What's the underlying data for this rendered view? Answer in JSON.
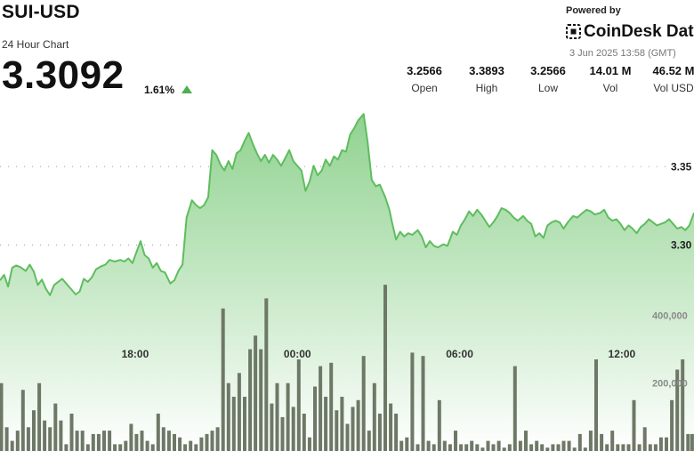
{
  "header": {
    "pair": "SUI-USD",
    "subtitle": "24 Hour Chart",
    "price": "3.3092",
    "change": "1.61%",
    "change_direction_icon": "triangle-up-icon"
  },
  "branding": {
    "powered_by": "Powered by",
    "brand": "CoinDesk Data",
    "timestamp": "3 Jun 2025 13:58 (GMT)"
  },
  "stats": [
    {
      "value": "3.2566",
      "label": "Open"
    },
    {
      "value": "3.3893",
      "label": "High"
    },
    {
      "value": "3.2566",
      "label": "Low"
    },
    {
      "value": "14.01 M",
      "label": "Vol"
    },
    {
      "value": "46.52 M",
      "label": "Vol USD"
    }
  ],
  "colors": {
    "line": "#5ebd5e",
    "fill_top": "#8bd08b",
    "fill_bottom": "#ffffff",
    "volume_bar": "#6e7866",
    "up_icon": "#4caf50"
  },
  "chart_data": {
    "type": "area",
    "grid": "dotted horizontal",
    "x_tick_labels": [
      "18:00",
      "00:00",
      "06:00",
      "12:00"
    ],
    "x_ticks_hours": [
      4.0,
      10.0,
      16.0,
      22.0
    ],
    "x_range_hours": [
      -1.0,
      24.67
    ],
    "price_axis": {
      "tick_labels": [
        "3.35",
        "3.30"
      ],
      "tick_values": [
        3.35,
        3.3
      ],
      "range": [
        3.2566,
        3.3893
      ]
    },
    "volume_axis": {
      "tick_labels": [
        "400,000",
        "200,000"
      ],
      "tick_values": [
        400000,
        200000
      ],
      "range": [
        0,
        700000
      ]
    },
    "price_series": [
      [
        -1.0,
        3.2775
      ],
      [
        -0.85,
        3.281
      ],
      [
        -0.7,
        3.2735
      ],
      [
        -0.55,
        3.2855
      ],
      [
        -0.4,
        3.287
      ],
      [
        -0.25,
        3.286
      ],
      [
        -0.05,
        3.2835
      ],
      [
        0.1,
        3.2875
      ],
      [
        0.25,
        3.283
      ],
      [
        0.4,
        3.2745
      ],
      [
        0.55,
        3.278
      ],
      [
        0.7,
        3.272
      ],
      [
        0.85,
        3.268
      ],
      [
        1.0,
        3.2745
      ],
      [
        1.15,
        3.2765
      ],
      [
        1.3,
        3.2785
      ],
      [
        1.45,
        3.2755
      ],
      [
        1.6,
        3.2725
      ],
      [
        1.8,
        3.2685
      ],
      [
        1.95,
        3.2705
      ],
      [
        2.1,
        3.2785
      ],
      [
        2.25,
        3.2765
      ],
      [
        2.4,
        3.2795
      ],
      [
        2.55,
        3.2845
      ],
      [
        2.75,
        3.2865
      ],
      [
        2.9,
        3.2875
      ],
      [
        3.05,
        3.2905
      ],
      [
        3.25,
        3.2895
      ],
      [
        3.45,
        3.2905
      ],
      [
        3.6,
        3.2895
      ],
      [
        3.75,
        3.2915
      ],
      [
        3.9,
        3.2885
      ],
      [
        4.05,
        3.2955
      ],
      [
        4.2,
        3.3025
      ],
      [
        4.35,
        3.2935
      ],
      [
        4.5,
        3.2915
      ],
      [
        4.65,
        3.2855
      ],
      [
        4.8,
        3.2885
      ],
      [
        4.95,
        3.2835
      ],
      [
        5.1,
        3.2825
      ],
      [
        5.3,
        3.2755
      ],
      [
        5.45,
        3.2775
      ],
      [
        5.6,
        3.2835
      ],
      [
        5.75,
        3.2875
      ],
      [
        5.9,
        3.3175
      ],
      [
        6.1,
        3.3285
      ],
      [
        6.25,
        3.3255
      ],
      [
        6.4,
        3.3235
      ],
      [
        6.55,
        3.3255
      ],
      [
        6.7,
        3.3305
      ],
      [
        6.85,
        3.3605
      ],
      [
        7.0,
        3.3575
      ],
      [
        7.15,
        3.3515
      ],
      [
        7.3,
        3.3475
      ],
      [
        7.45,
        3.3535
      ],
      [
        7.6,
        3.3485
      ],
      [
        7.75,
        3.3585
      ],
      [
        7.9,
        3.3605
      ],
      [
        8.05,
        3.3665
      ],
      [
        8.2,
        3.3715
      ],
      [
        8.35,
        3.3645
      ],
      [
        8.5,
        3.3585
      ],
      [
        8.65,
        3.3535
      ],
      [
        8.8,
        3.3575
      ],
      [
        8.95,
        3.3525
      ],
      [
        9.1,
        3.3575
      ],
      [
        9.25,
        3.3545
      ],
      [
        9.4,
        3.3505
      ],
      [
        9.55,
        3.3555
      ],
      [
        9.7,
        3.3605
      ],
      [
        9.85,
        3.3535
      ],
      [
        10.0,
        3.3505
      ],
      [
        10.15,
        3.3475
      ],
      [
        10.3,
        3.3345
      ],
      [
        10.45,
        3.3405
      ],
      [
        10.6,
        3.3505
      ],
      [
        10.75,
        3.3445
      ],
      [
        10.9,
        3.3475
      ],
      [
        11.05,
        3.3545
      ],
      [
        11.2,
        3.3505
      ],
      [
        11.35,
        3.3565
      ],
      [
        11.5,
        3.3545
      ],
      [
        11.65,
        3.3605
      ],
      [
        11.8,
        3.3595
      ],
      [
        11.95,
        3.3705
      ],
      [
        12.1,
        3.3745
      ],
      [
        12.25,
        3.3795
      ],
      [
        12.45,
        3.3835
      ],
      [
        12.6,
        3.3655
      ],
      [
        12.75,
        3.3415
      ],
      [
        12.9,
        3.3375
      ],
      [
        13.05,
        3.3385
      ],
      [
        13.25,
        3.3305
      ],
      [
        13.4,
        3.3225
      ],
      [
        13.5,
        3.3145
      ],
      [
        13.65,
        3.3035
      ],
      [
        13.8,
        3.3085
      ],
      [
        13.95,
        3.3055
      ],
      [
        14.1,
        3.3075
      ],
      [
        14.25,
        3.3065
      ],
      [
        14.45,
        3.3095
      ],
      [
        14.6,
        3.3055
      ],
      [
        14.75,
        3.2985
      ],
      [
        14.9,
        3.3025
      ],
      [
        15.05,
        3.2995
      ],
      [
        15.2,
        3.2985
      ],
      [
        15.4,
        3.3005
      ],
      [
        15.55,
        3.2995
      ],
      [
        15.75,
        3.3085
      ],
      [
        15.9,
        3.3065
      ],
      [
        16.05,
        3.3125
      ],
      [
        16.2,
        3.3165
      ],
      [
        16.35,
        3.3215
      ],
      [
        16.5,
        3.3185
      ],
      [
        16.65,
        3.3225
      ],
      [
        16.8,
        3.3195
      ],
      [
        16.95,
        3.3155
      ],
      [
        17.1,
        3.3115
      ],
      [
        17.25,
        3.3145
      ],
      [
        17.4,
        3.3185
      ],
      [
        17.55,
        3.3235
      ],
      [
        17.7,
        3.3225
      ],
      [
        17.85,
        3.3205
      ],
      [
        18.0,
        3.3175
      ],
      [
        18.15,
        3.3155
      ],
      [
        18.35,
        3.3185
      ],
      [
        18.5,
        3.3155
      ],
      [
        18.65,
        3.3135
      ],
      [
        18.8,
        3.3055
      ],
      [
        18.95,
        3.3075
      ],
      [
        19.1,
        3.3045
      ],
      [
        19.25,
        3.3125
      ],
      [
        19.4,
        3.3145
      ],
      [
        19.55,
        3.3155
      ],
      [
        19.7,
        3.3145
      ],
      [
        19.85,
        3.3105
      ],
      [
        20.0,
        3.3145
      ],
      [
        20.2,
        3.3185
      ],
      [
        20.35,
        3.3175
      ],
      [
        20.55,
        3.3205
      ],
      [
        20.7,
        3.3225
      ],
      [
        20.85,
        3.3215
      ],
      [
        21.0,
        3.3195
      ],
      [
        21.2,
        3.3205
      ],
      [
        21.35,
        3.3225
      ],
      [
        21.5,
        3.3175
      ],
      [
        21.65,
        3.3155
      ],
      [
        21.8,
        3.3165
      ],
      [
        21.95,
        3.3135
      ],
      [
        22.1,
        3.3095
      ],
      [
        22.25,
        3.3125
      ],
      [
        22.4,
        3.3105
      ],
      [
        22.55,
        3.3075
      ],
      [
        22.7,
        3.3115
      ],
      [
        22.85,
        3.3135
      ],
      [
        23.0,
        3.3165
      ],
      [
        23.15,
        3.3145
      ],
      [
        23.3,
        3.3125
      ],
      [
        23.45,
        3.3135
      ],
      [
        23.6,
        3.3145
      ],
      [
        23.75,
        3.3165
      ],
      [
        23.9,
        3.3135
      ],
      [
        24.05,
        3.3105
      ],
      [
        24.2,
        3.3115
      ],
      [
        24.35,
        3.3095
      ],
      [
        24.5,
        3.3125
      ],
      [
        24.67,
        3.3205
      ]
    ],
    "volume_series": [
      [
        -0.95,
        200000
      ],
      [
        -0.75,
        70000
      ],
      [
        -0.55,
        30000
      ],
      [
        -0.35,
        60000
      ],
      [
        -0.15,
        180000
      ],
      [
        0.05,
        70000
      ],
      [
        0.25,
        120000
      ],
      [
        0.45,
        200000
      ],
      [
        0.65,
        90000
      ],
      [
        0.85,
        70000
      ],
      [
        1.05,
        140000
      ],
      [
        1.25,
        90000
      ],
      [
        1.45,
        20000
      ],
      [
        1.65,
        110000
      ],
      [
        1.85,
        60000
      ],
      [
        2.05,
        60000
      ],
      [
        2.25,
        20000
      ],
      [
        2.45,
        50000
      ],
      [
        2.65,
        50000
      ],
      [
        2.85,
        60000
      ],
      [
        3.05,
        60000
      ],
      [
        3.25,
        20000
      ],
      [
        3.45,
        20000
      ],
      [
        3.65,
        30000
      ],
      [
        3.85,
        80000
      ],
      [
        4.05,
        50000
      ],
      [
        4.25,
        60000
      ],
      [
        4.45,
        30000
      ],
      [
        4.65,
        20000
      ],
      [
        4.85,
        110000
      ],
      [
        5.05,
        70000
      ],
      [
        5.25,
        60000
      ],
      [
        5.45,
        50000
      ],
      [
        5.65,
        40000
      ],
      [
        5.85,
        20000
      ],
      [
        6.05,
        30000
      ],
      [
        6.25,
        20000
      ],
      [
        6.45,
        40000
      ],
      [
        6.65,
        50000
      ],
      [
        6.85,
        60000
      ],
      [
        7.05,
        70000
      ],
      [
        7.25,
        420000
      ],
      [
        7.45,
        200000
      ],
      [
        7.65,
        160000
      ],
      [
        7.85,
        230000
      ],
      [
        8.05,
        160000
      ],
      [
        8.25,
        300000
      ],
      [
        8.45,
        340000
      ],
      [
        8.65,
        300000
      ],
      [
        8.85,
        450000
      ],
      [
        9.05,
        140000
      ],
      [
        9.25,
        200000
      ],
      [
        9.45,
        100000
      ],
      [
        9.65,
        200000
      ],
      [
        9.85,
        130000
      ],
      [
        10.05,
        270000
      ],
      [
        10.25,
        110000
      ],
      [
        10.45,
        40000
      ],
      [
        10.65,
        190000
      ],
      [
        10.85,
        250000
      ],
      [
        11.05,
        160000
      ],
      [
        11.25,
        260000
      ],
      [
        11.45,
        120000
      ],
      [
        11.65,
        160000
      ],
      [
        11.85,
        80000
      ],
      [
        12.05,
        130000
      ],
      [
        12.25,
        150000
      ],
      [
        12.45,
        280000
      ],
      [
        12.65,
        60000
      ],
      [
        12.85,
        200000
      ],
      [
        13.05,
        110000
      ],
      [
        13.25,
        490000
      ],
      [
        13.45,
        140000
      ],
      [
        13.65,
        110000
      ],
      [
        13.85,
        30000
      ],
      [
        14.05,
        40000
      ],
      [
        14.25,
        290000
      ],
      [
        14.45,
        20000
      ],
      [
        14.65,
        280000
      ],
      [
        14.85,
        30000
      ],
      [
        15.05,
        20000
      ],
      [
        15.25,
        150000
      ],
      [
        15.45,
        30000
      ],
      [
        15.65,
        20000
      ],
      [
        15.85,
        60000
      ],
      [
        16.05,
        20000
      ],
      [
        16.25,
        20000
      ],
      [
        16.45,
        30000
      ],
      [
        16.65,
        20000
      ],
      [
        16.85,
        10000
      ],
      [
        17.05,
        30000
      ],
      [
        17.25,
        20000
      ],
      [
        17.45,
        30000
      ],
      [
        17.65,
        10000
      ],
      [
        17.85,
        20000
      ],
      [
        18.05,
        250000
      ],
      [
        18.25,
        30000
      ],
      [
        18.45,
        60000
      ],
      [
        18.65,
        20000
      ],
      [
        18.85,
        30000
      ],
      [
        19.05,
        20000
      ],
      [
        19.25,
        10000
      ],
      [
        19.45,
        20000
      ],
      [
        19.65,
        20000
      ],
      [
        19.85,
        30000
      ],
      [
        20.05,
        30000
      ],
      [
        20.25,
        10000
      ],
      [
        20.45,
        50000
      ],
      [
        20.65,
        10000
      ],
      [
        20.85,
        60000
      ],
      [
        21.05,
        270000
      ],
      [
        21.25,
        50000
      ],
      [
        21.45,
        20000
      ],
      [
        21.65,
        60000
      ],
      [
        21.85,
        20000
      ],
      [
        22.05,
        20000
      ],
      [
        22.25,
        20000
      ],
      [
        22.45,
        150000
      ],
      [
        22.65,
        20000
      ],
      [
        22.85,
        70000
      ],
      [
        23.05,
        20000
      ],
      [
        23.25,
        20000
      ],
      [
        23.45,
        40000
      ],
      [
        23.65,
        40000
      ],
      [
        23.85,
        150000
      ],
      [
        24.05,
        240000
      ],
      [
        24.25,
        270000
      ],
      [
        24.45,
        50000
      ],
      [
        24.6,
        50000
      ]
    ]
  }
}
